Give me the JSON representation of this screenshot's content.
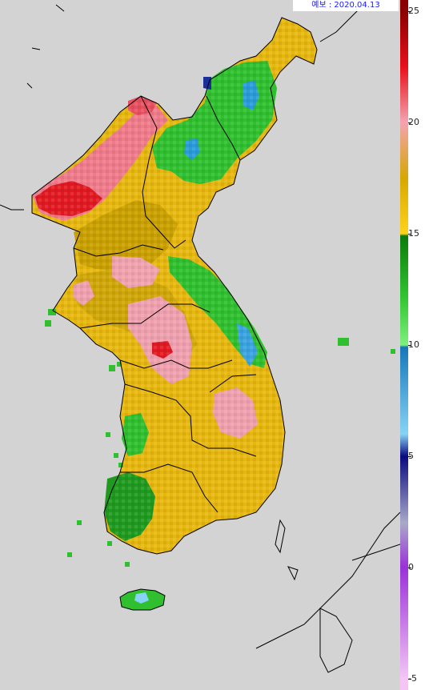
{
  "forecast_label": "예보 : 2020.04.13",
  "colorbar": {
    "ticks": [
      "25",
      "20",
      "15",
      "10",
      "5",
      "0",
      "-5"
    ],
    "stops": [
      {
        "value": 25,
        "color": "#8b0000"
      },
      {
        "value": 22.5,
        "color": "#e8101a"
      },
      {
        "value": 20,
        "color": "#f4a3b0"
      },
      {
        "value": 17.5,
        "color": "#d6a800"
      },
      {
        "value": 15,
        "color": "#ffd21a"
      },
      {
        "value": 14.9,
        "color": "#0b7a0b"
      },
      {
        "value": 12,
        "color": "#34c834"
      },
      {
        "value": 10,
        "color": "#7ff07f"
      },
      {
        "value": 9.9,
        "color": "#1677b8"
      },
      {
        "value": 6,
        "color": "#87d3f5"
      },
      {
        "value": 5,
        "color": "#0a0a80"
      },
      {
        "value": 2,
        "color": "#a9a9c9"
      },
      {
        "value": 0,
        "color": "#9b30d9"
      },
      {
        "value": -5,
        "color": "#f5c6f5"
      }
    ]
  },
  "colors": {
    "sea": "#d3d3d3",
    "boundary": "#000000"
  }
}
